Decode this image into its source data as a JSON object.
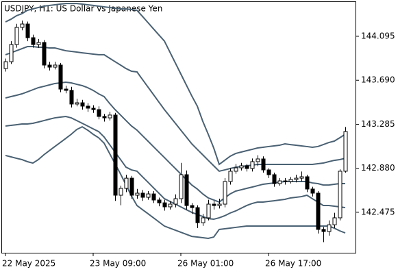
{
  "chart_data": {
    "type": "candlestick",
    "title": "USDJPY, H1:  US Dollar vs Japanese Yen",
    "categories": [
      "22 May 2025",
      null,
      null,
      null,
      null,
      null,
      null,
      null,
      null,
      null,
      null,
      null,
      null,
      null,
      null,
      null,
      "23 May 09:00",
      null,
      null,
      null,
      null,
      null,
      null,
      null,
      null,
      null,
      null,
      null,
      null,
      null,
      null,
      null,
      "26 May 01:00",
      null,
      null,
      null,
      null,
      null,
      null,
      null,
      null,
      null,
      null,
      null,
      null,
      null,
      null,
      null,
      "26 May 17:00",
      null,
      null,
      null,
      null,
      null,
      null,
      null,
      null,
      null,
      null,
      null,
      null,
      null,
      null
    ],
    "open": [
      143.798,
      143.861,
      144.019,
      144.177,
      144.208,
      144.082,
      144.019,
      144.038,
      143.83,
      143.811,
      143.83,
      143.609,
      143.597,
      143.471,
      143.483,
      143.452,
      143.433,
      143.42,
      143.357,
      143.344,
      143.37,
      142.632,
      142.695,
      142.789,
      142.632,
      142.651,
      142.613,
      142.644,
      142.588,
      142.562,
      142.525,
      142.55,
      142.6,
      142.821,
      142.537,
      142.518,
      142.379,
      142.424,
      142.55,
      142.537,
      142.55,
      142.758,
      142.853,
      142.884,
      142.903,
      142.878,
      142.941,
      142.966,
      142.865,
      142.821,
      142.739,
      142.764,
      142.758,
      142.777,
      142.789,
      142.802,
      142.689,
      142.651,
      142.317,
      142.298,
      142.36,
      142.424,
      142.853
    ],
    "high": [
      143.89,
      144.05,
      144.21,
      144.24,
      144.23,
      144.11,
      144.07,
      144.06,
      143.86,
      143.86,
      143.85,
      143.64,
      143.63,
      143.52,
      143.51,
      143.48,
      143.46,
      143.45,
      143.38,
      143.4,
      143.39,
      142.72,
      142.82,
      142.81,
      142.69,
      142.68,
      142.67,
      142.67,
      142.61,
      142.59,
      142.58,
      142.64,
      142.93,
      142.86,
      142.56,
      142.54,
      142.46,
      142.59,
      142.58,
      142.6,
      142.79,
      142.88,
      142.92,
      142.93,
      142.92,
      142.97,
      143.0,
      142.99,
      142.88,
      142.84,
      142.79,
      142.79,
      142.8,
      142.82,
      142.85,
      142.82,
      142.71,
      142.67,
      142.34,
      142.4,
      142.47,
      142.87,
      143.26
    ],
    "low": [
      143.77,
      143.84,
      143.99,
      144.15,
      144.05,
      143.99,
      143.99,
      143.8,
      143.78,
      143.79,
      143.58,
      143.57,
      143.44,
      143.45,
      143.42,
      143.4,
      143.39,
      143.33,
      143.31,
      143.32,
      142.58,
      142.54,
      142.66,
      142.6,
      142.6,
      142.58,
      142.59,
      142.56,
      142.53,
      142.49,
      142.5,
      142.52,
      142.56,
      142.5,
      142.46,
      142.33,
      142.35,
      142.4,
      142.5,
      142.51,
      142.52,
      142.73,
      142.83,
      142.86,
      142.85,
      142.85,
      142.9,
      142.84,
      142.79,
      142.71,
      142.72,
      142.73,
      142.74,
      142.75,
      142.76,
      142.66,
      142.62,
      142.28,
      142.2,
      142.26,
      142.33,
      142.4,
      142.84
    ],
    "close": [
      143.861,
      144.019,
      144.177,
      144.208,
      144.082,
      144.019,
      144.038,
      143.83,
      143.811,
      143.83,
      143.609,
      143.597,
      143.471,
      143.483,
      143.452,
      143.433,
      143.42,
      143.357,
      143.344,
      143.37,
      142.632,
      142.695,
      142.789,
      142.632,
      142.651,
      142.613,
      142.644,
      142.588,
      142.562,
      142.525,
      142.55,
      142.6,
      142.821,
      142.537,
      142.518,
      142.379,
      142.424,
      142.55,
      142.537,
      142.55,
      142.758,
      142.853,
      142.884,
      142.903,
      142.878,
      142.941,
      142.966,
      142.865,
      142.821,
      142.739,
      142.764,
      142.758,
      142.777,
      142.789,
      142.802,
      142.689,
      142.651,
      142.317,
      142.298,
      142.36,
      142.424,
      142.853,
      143.218
    ],
    "up_color": "#ffffff",
    "down_color": "#000000",
    "wick_color": "#000000",
    "series": [
      {
        "color": "#4a6173",
        "values": [
          144.227,
          144.252,
          144.284,
          144.303,
          144.334,
          144.347,
          144.36,
          144.372,
          144.379,
          144.385,
          144.391,
          144.397,
          144.397,
          144.397,
          144.391,
          144.385,
          144.379,
          144.372,
          144.366,
          144.36,
          144.353,
          144.347,
          144.347,
          144.341,
          144.334,
          144.278,
          144.221,
          144.164,
          144.107,
          144.051,
          143.95,
          143.849,
          143.748,
          143.647,
          143.546,
          143.452,
          143.313,
          143.193,
          143.067,
          142.916,
          142.953,
          142.991,
          143.016,
          143.029,
          143.042,
          143.054,
          143.067,
          143.073,
          143.08,
          143.086,
          143.092,
          143.105,
          143.098,
          143.092,
          143.086,
          143.08,
          143.073,
          143.08,
          143.098,
          143.117,
          143.13,
          143.161,
          143.193
        ]
      },
      {
        "color": "#4a6173",
        "values": [
          143.925,
          143.943,
          143.962,
          143.981,
          144.0,
          144.0,
          143.994,
          143.994,
          143.988,
          143.988,
          143.975,
          143.962,
          143.956,
          143.95,
          143.943,
          143.937,
          143.931,
          143.925,
          143.925,
          143.893,
          143.861,
          143.83,
          143.798,
          143.773,
          143.767,
          143.697,
          143.628,
          143.559,
          143.489,
          143.42,
          143.357,
          143.294,
          143.231,
          143.168,
          143.105,
          143.054,
          143.004,
          142.953,
          142.903,
          142.853,
          142.865,
          142.878,
          142.89,
          142.896,
          142.903,
          142.909,
          142.916,
          142.916,
          142.916,
          142.916,
          142.916,
          142.916,
          142.916,
          142.916,
          142.916,
          142.916,
          142.916,
          142.922,
          142.928,
          142.941,
          142.953,
          142.96,
          142.972
        ]
      },
      {
        "color": "#4a6173",
        "values": [
          143.527,
          143.54,
          143.552,
          143.565,
          143.584,
          143.603,
          143.622,
          143.634,
          143.647,
          143.66,
          143.666,
          143.672,
          143.666,
          143.653,
          143.641,
          143.622,
          143.597,
          143.565,
          143.54,
          143.477,
          143.42,
          143.37,
          143.319,
          143.269,
          143.231,
          143.18,
          143.13,
          143.079,
          143.029,
          142.979,
          142.928,
          142.878,
          142.827,
          142.777,
          142.726,
          142.689,
          142.644,
          142.607,
          142.588,
          142.569,
          142.607,
          142.644,
          142.67,
          142.682,
          142.695,
          142.707,
          142.72,
          142.733,
          142.739,
          142.745,
          142.752,
          142.758,
          142.758,
          142.758,
          142.758,
          142.758,
          142.745,
          142.739,
          142.726,
          142.726,
          142.733,
          142.739,
          142.739
        ]
      },
      {
        "color": "#4a6173",
        "values": [
          143.269,
          143.275,
          143.281,
          143.288,
          143.288,
          143.294,
          143.306,
          143.319,
          143.332,
          143.344,
          143.351,
          143.357,
          143.344,
          143.319,
          143.294,
          143.269,
          143.243,
          143.218,
          143.168,
          143.098,
          143.029,
          142.96,
          142.89,
          142.865,
          142.853,
          142.802,
          142.752,
          142.701,
          142.651,
          142.6,
          142.575,
          142.55,
          142.525,
          142.499,
          142.474,
          142.455,
          142.436,
          142.417,
          142.411,
          142.424,
          142.443,
          142.468,
          142.487,
          142.512,
          142.537,
          142.556,
          142.569,
          142.569,
          142.575,
          142.581,
          142.588,
          142.594,
          142.607,
          142.613,
          142.619,
          142.632,
          142.6,
          142.569,
          142.537,
          142.537,
          142.531,
          142.525,
          142.518
        ]
      },
      {
        "color": "#4a6173",
        "values": [
          142.998,
          142.985,
          142.972,
          142.96,
          142.941,
          142.928,
          142.96,
          143.004,
          143.042,
          143.08,
          143.117,
          143.155,
          143.193,
          143.237,
          143.262,
          143.231,
          143.193,
          143.161,
          143.111,
          143.016,
          142.922,
          142.827,
          142.726,
          142.625,
          142.537,
          142.499,
          142.462,
          142.424,
          142.386,
          142.348,
          142.329,
          142.31,
          142.291,
          142.272,
          142.253,
          142.247,
          142.241,
          142.235,
          142.247,
          142.317,
          142.323,
          142.329,
          142.336,
          142.342,
          142.348,
          142.348,
          142.348,
          142.348,
          142.348,
          142.348,
          142.348,
          142.348,
          142.348,
          142.348,
          142.348,
          142.348,
          142.348,
          142.348,
          142.348,
          142.348,
          142.329,
          142.304,
          142.285
        ]
      }
    ],
    "ylim": [
      142.096,
      144.429
    ],
    "yticks": [
      144.095,
      {
        "value": 143.69,
        "label": "143.690"
      },
      143.285,
      {
        "value": 142.88,
        "label": "142.880"
      },
      142.475
    ]
  }
}
